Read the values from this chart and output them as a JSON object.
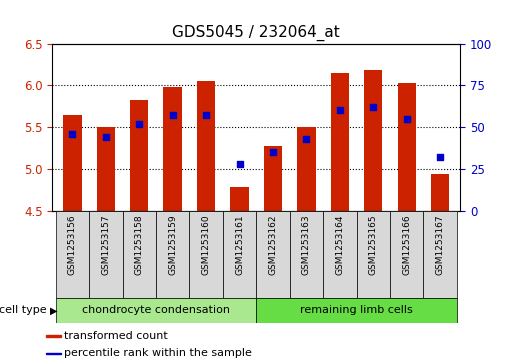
{
  "title": "GDS5045 / 232064_at",
  "samples": [
    "GSM1253156",
    "GSM1253157",
    "GSM1253158",
    "GSM1253159",
    "GSM1253160",
    "GSM1253161",
    "GSM1253162",
    "GSM1253163",
    "GSM1253164",
    "GSM1253165",
    "GSM1253166",
    "GSM1253167"
  ],
  "bar_values": [
    5.65,
    5.5,
    5.82,
    5.98,
    6.05,
    4.78,
    5.27,
    5.5,
    6.15,
    6.18,
    6.03,
    4.94
  ],
  "percentile_values": [
    46,
    44,
    52,
    57,
    57,
    28,
    35,
    43,
    60,
    62,
    55,
    32
  ],
  "ymin": 4.5,
  "ymax": 6.5,
  "yticks": [
    4.5,
    5.0,
    5.5,
    6.0,
    6.5
  ],
  "right_yticks": [
    0,
    25,
    50,
    75,
    100
  ],
  "bar_color": "#cc2200",
  "dot_color": "#0000cc",
  "bar_bottom": 4.5,
  "cell_type_groups": [
    {
      "label": "chondrocyte condensation",
      "start": 0,
      "end": 5,
      "color": "#aae890"
    },
    {
      "label": "remaining limb cells",
      "start": 6,
      "end": 11,
      "color": "#66dd44"
    }
  ],
  "cell_type_label": "cell type",
  "legend_items": [
    {
      "label": "transformed count",
      "color": "#cc2200"
    },
    {
      "label": "percentile rank within the sample",
      "color": "#0000cc"
    }
  ],
  "bar_width": 0.55,
  "title_fontsize": 11,
  "tick_fontsize": 8.5,
  "sample_fontsize": 6.5,
  "group_fontsize": 8,
  "legend_fontsize": 8,
  "grid_yticks": [
    5.0,
    5.5,
    6.0
  ]
}
